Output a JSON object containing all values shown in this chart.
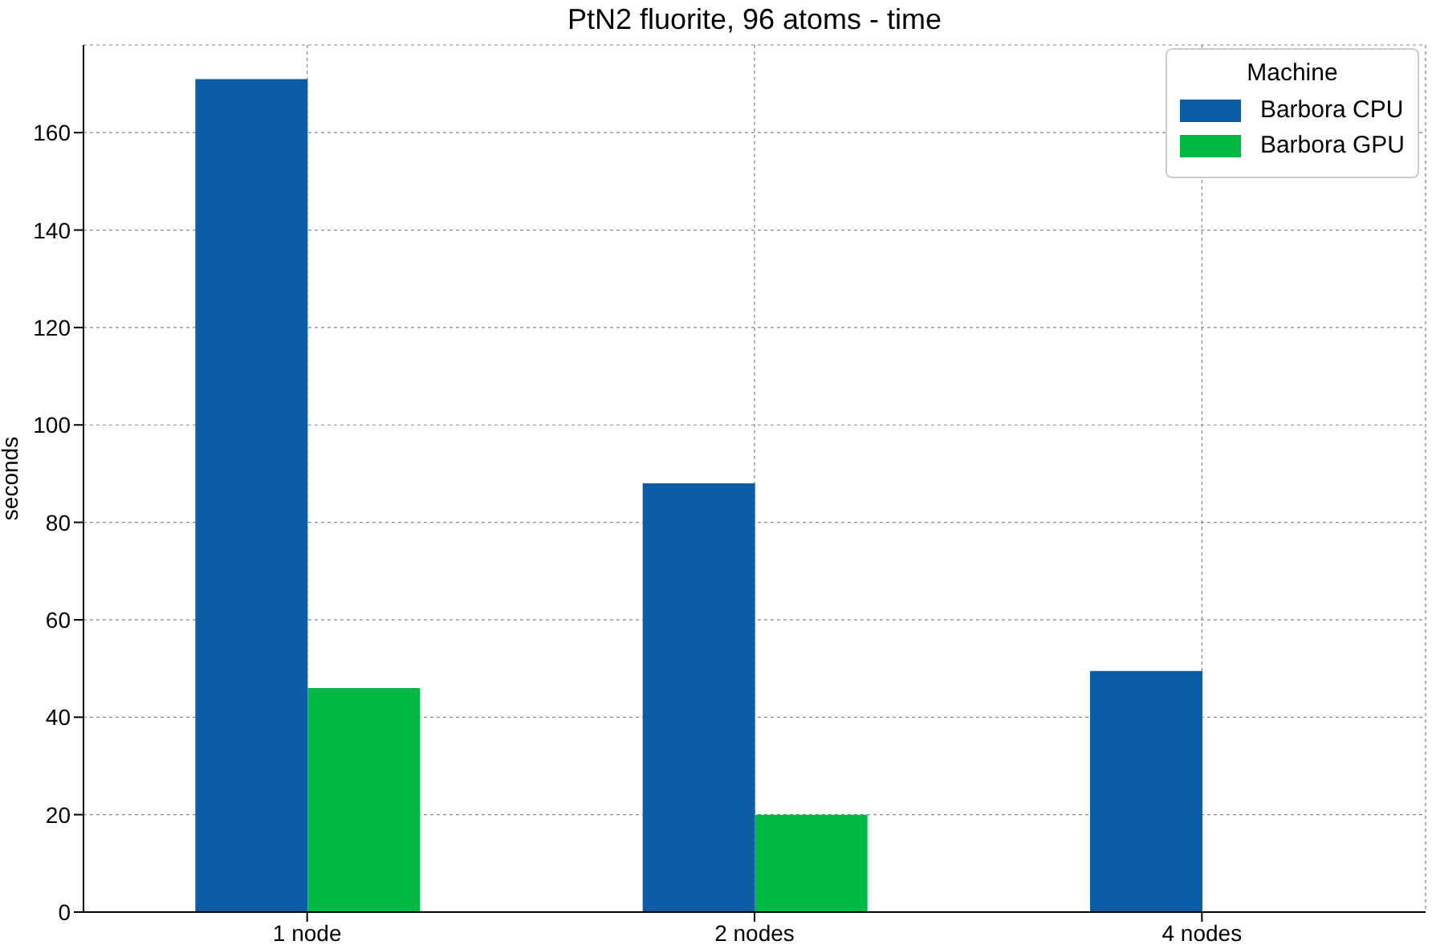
{
  "chart_data": {
    "type": "bar",
    "title": "PtN2 fluorite, 96 atoms - time",
    "ylabel": "seconds",
    "legend_title": "Machine",
    "categories": [
      "1 node",
      "2 nodes",
      "4 nodes"
    ],
    "series": [
      {
        "name": "Barbora CPU",
        "color": "#0c5da5",
        "values": [
          171,
          88,
          49.5
        ]
      },
      {
        "name": "Barbora GPU",
        "color": "#00b945",
        "values": [
          46,
          20,
          null
        ]
      }
    ],
    "ylim": [
      0,
      178
    ],
    "yticks": [
      0,
      20,
      40,
      60,
      80,
      100,
      120,
      140,
      160
    ],
    "grid": true,
    "legend": "top right"
  }
}
